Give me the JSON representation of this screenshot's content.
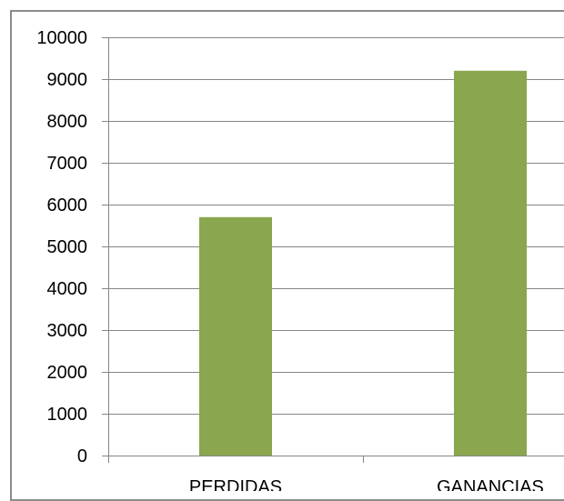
{
  "chart_data": {
    "type": "bar",
    "title": "",
    "xlabel": "",
    "ylabel": "",
    "categories": [
      "PERDIDAS",
      "GANANCIAS"
    ],
    "series": [
      {
        "values": [
          5700,
          9200
        ]
      }
    ],
    "ylim": [
      0,
      10000
    ],
    "yticks": [
      0,
      1000,
      2000,
      3000,
      4000,
      5000,
      6000,
      7000,
      8000,
      9000,
      10000
    ],
    "grid": true,
    "legend": "none",
    "colors": {
      "bar": "#8aa64f",
      "grid": "#868686",
      "axis": "#868686",
      "frame": "#8c8c8c",
      "text": "#000000"
    }
  }
}
